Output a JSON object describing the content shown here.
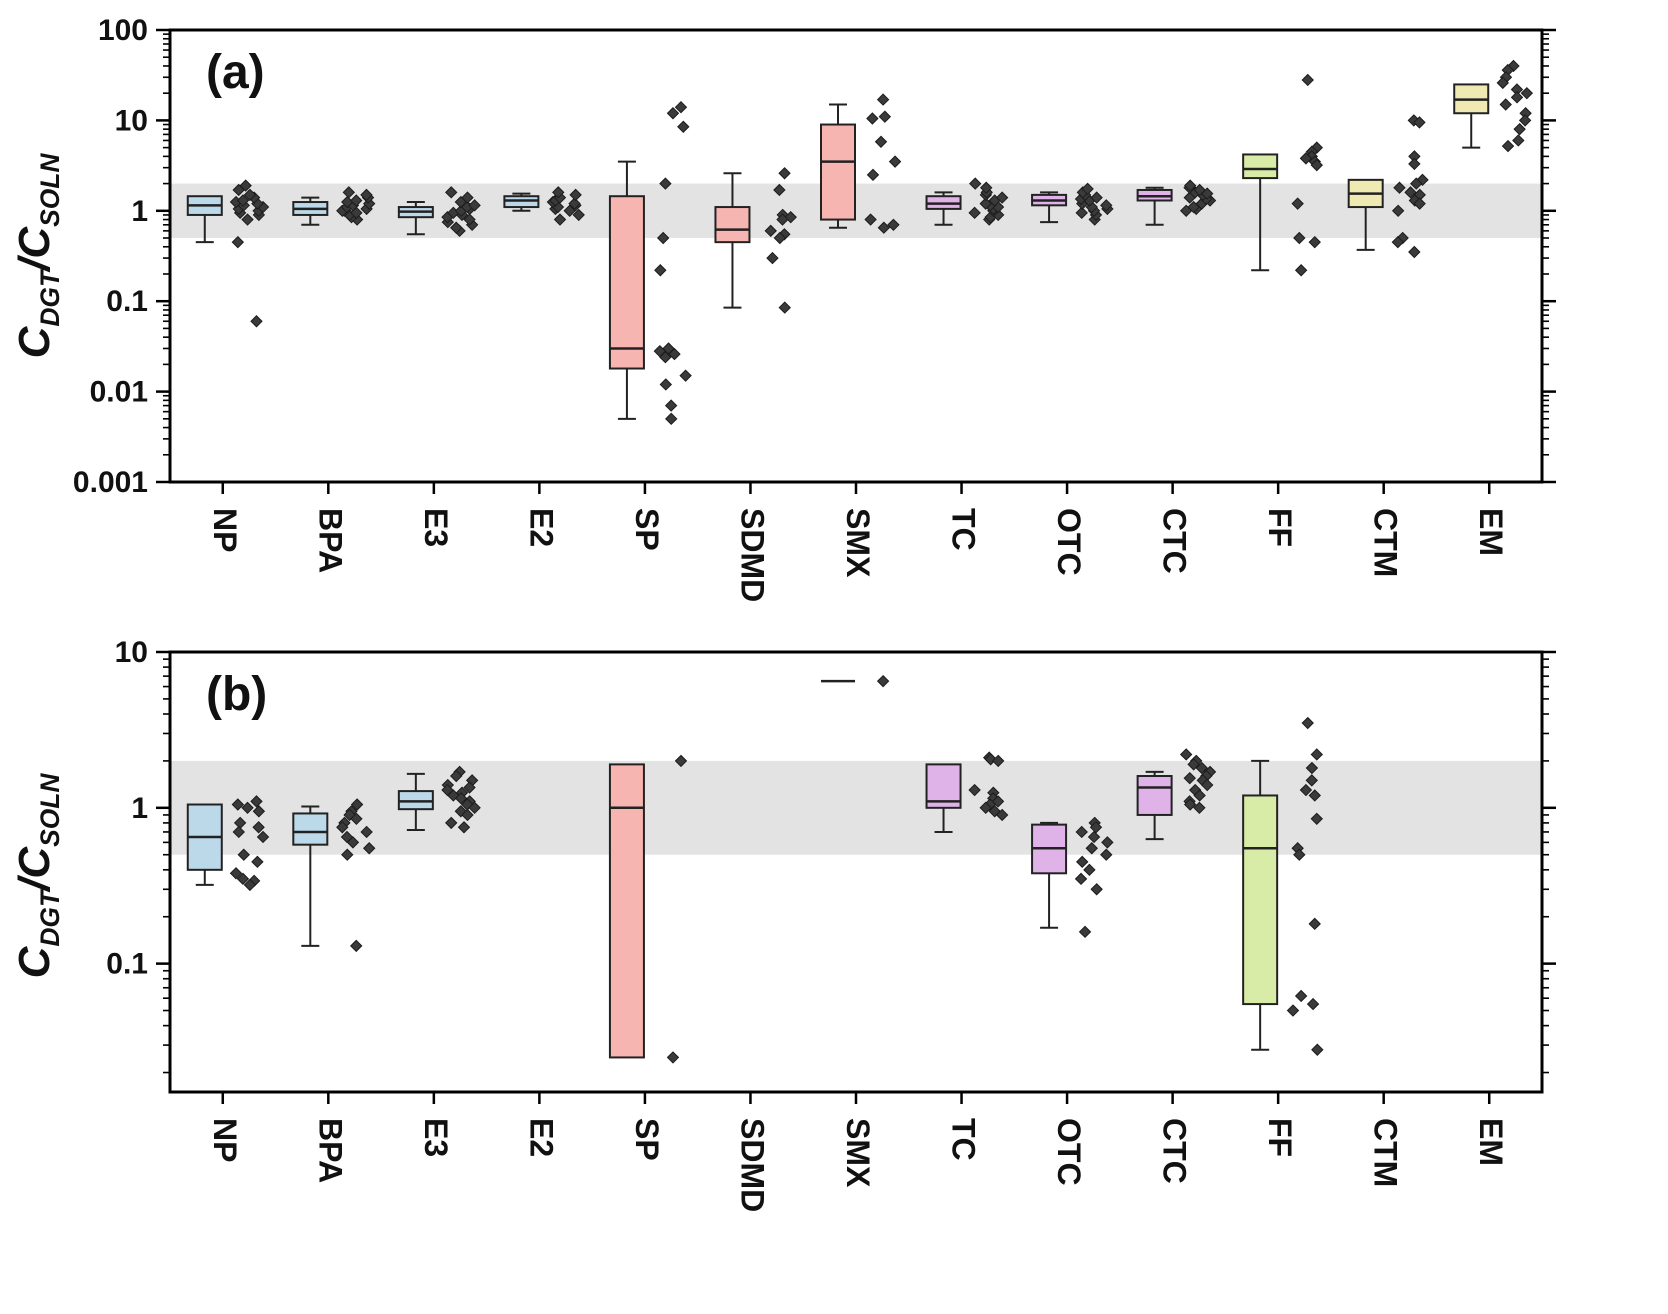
{
  "figure": {
    "y_axis_label": {
      "c1": "C",
      "s1": "DGT",
      "slash": "/",
      "c2": "C",
      "s2": "SOLN"
    }
  },
  "chart_data": [
    {
      "panel": "a",
      "label": "(a)",
      "type": "box-scatter",
      "ylim": [
        0.001,
        100
      ],
      "yticks": [
        100,
        10,
        1,
        0.1,
        0.01,
        0.001
      ],
      "ytick_labels": [
        "100",
        "10",
        "1",
        "0.1",
        "0.01",
        "0.001"
      ],
      "band": [
        0.5,
        2
      ],
      "band_color": "#e3e3e3",
      "categories": [
        "NP",
        "BPA",
        "E3",
        "E2",
        "SP",
        "SDMD",
        "SMX",
        "TC",
        "OTC",
        "CTC",
        "FF",
        "CTM",
        "EM"
      ],
      "colors": [
        "#bcd9ea",
        "#bcd9ea",
        "#bcd9ea",
        "#bcd9ea",
        "#f6b5b0",
        "#f6b5b0",
        "#f6b5b0",
        "#e0b3e8",
        "#e0b3e8",
        "#e0b3e8",
        "#d8eca8",
        "#eeeab2",
        "#eeeab2"
      ],
      "boxes": [
        {
          "whislo": 0.45,
          "q1": 0.9,
          "med": 1.15,
          "q3": 1.45,
          "whishi": 1.45
        },
        {
          "whislo": 0.7,
          "q1": 0.9,
          "med": 1.05,
          "q3": 1.25,
          "whishi": 1.4
        },
        {
          "whislo": 0.55,
          "q1": 0.85,
          "med": 0.98,
          "q3": 1.1,
          "whishi": 1.25
        },
        {
          "whislo": 1.0,
          "q1": 1.1,
          "med": 1.3,
          "q3": 1.45,
          "whishi": 1.55
        },
        {
          "whislo": 0.005,
          "q1": 0.018,
          "med": 0.03,
          "q3": 1.45,
          "whishi": 3.5
        },
        {
          "whislo": 0.085,
          "q1": 0.45,
          "med": 0.62,
          "q3": 1.1,
          "whishi": 2.6
        },
        {
          "whislo": 0.65,
          "q1": 0.8,
          "med": 3.5,
          "q3": 9.0,
          "whishi": 15.0
        },
        {
          "whislo": 0.7,
          "q1": 1.05,
          "med": 1.2,
          "q3": 1.45,
          "whishi": 1.6
        },
        {
          "whislo": 0.75,
          "q1": 1.15,
          "med": 1.3,
          "q3": 1.5,
          "whishi": 1.6
        },
        {
          "whislo": 0.7,
          "q1": 1.3,
          "med": 1.45,
          "q3": 1.7,
          "whishi": 1.8
        },
        {
          "whislo": 0.22,
          "q1": 2.3,
          "med": 2.9,
          "q3": 4.2,
          "whishi": 4.2
        },
        {
          "whislo": 0.37,
          "q1": 1.1,
          "med": 1.55,
          "q3": 2.2,
          "whishi": 2.2
        },
        {
          "whislo": 5.0,
          "q1": 12.0,
          "med": 17.0,
          "q3": 25.0,
          "whishi": 25.0
        }
      ],
      "points": [
        [
          0.06,
          0.45,
          0.8,
          0.9,
          0.95,
          1.0,
          1.05,
          1.1,
          1.15,
          1.2,
          1.25,
          1.3,
          1.4,
          1.5,
          1.7,
          1.9
        ],
        [
          0.8,
          0.85,
          0.9,
          0.95,
          1.0,
          1.0,
          1.05,
          1.1,
          1.15,
          1.2,
          1.25,
          1.3,
          1.4,
          1.5,
          1.6
        ],
        [
          0.6,
          0.65,
          0.7,
          0.75,
          0.8,
          0.85,
          0.9,
          0.95,
          1.0,
          1.05,
          1.1,
          1.15,
          1.25,
          1.4,
          1.6
        ],
        [
          0.8,
          0.9,
          1.0,
          1.05,
          1.1,
          1.15,
          1.2,
          1.25,
          1.3,
          1.4,
          1.5,
          1.6
        ],
        [
          14.0,
          12.0,
          8.5,
          2.0,
          0.5,
          0.22,
          0.03,
          0.028,
          0.026,
          0.024,
          0.015,
          0.012,
          0.007,
          0.005
        ],
        [
          2.6,
          1.7,
          0.9,
          0.85,
          0.8,
          0.6,
          0.55,
          0.5,
          0.3,
          0.085
        ],
        [
          17.0,
          11.0,
          10.5,
          5.8,
          3.5,
          2.5,
          0.8,
          0.7,
          0.65
        ],
        [
          0.8,
          0.85,
          0.9,
          0.95,
          1.0,
          1.05,
          1.1,
          1.15,
          1.2,
          1.3,
          1.4,
          1.5,
          1.6,
          1.8,
          2.0
        ],
        [
          0.8,
          0.9,
          0.95,
          1.0,
          1.05,
          1.1,
          1.15,
          1.2,
          1.3,
          1.35,
          1.4,
          1.5,
          1.6,
          1.75
        ],
        [
          1.0,
          1.05,
          1.1,
          1.2,
          1.3,
          1.35,
          1.4,
          1.5,
          1.55,
          1.6,
          1.7,
          1.8,
          1.9
        ],
        [
          28.0,
          5.0,
          4.5,
          4.0,
          3.8,
          3.5,
          3.2,
          1.2,
          0.5,
          0.45,
          0.22
        ],
        [
          10.0,
          9.5,
          4.0,
          3.3,
          2.2,
          2.0,
          1.8,
          1.6,
          1.5,
          1.3,
          1.2,
          1.0,
          0.5,
          0.45,
          0.35
        ],
        [
          40.0,
          36.0,
          30.0,
          26.0,
          22.0,
          20.0,
          18.0,
          15.0,
          12.0,
          10.0,
          8.0,
          6.0,
          5.2
        ]
      ]
    },
    {
      "panel": "b",
      "label": "(b)",
      "type": "box-scatter",
      "ylim": [
        0.015,
        10
      ],
      "yticks": [
        10,
        1,
        0.1
      ],
      "ytick_labels": [
        "10",
        "1",
        "0.1"
      ],
      "band": [
        0.5,
        2
      ],
      "band_color": "#e3e3e3",
      "categories": [
        "NP",
        "BPA",
        "E3",
        "E2",
        "SP",
        "SDMD",
        "SMX",
        "TC",
        "OTC",
        "CTC",
        "FF",
        "CTM",
        "EM"
      ],
      "colors": [
        "#bcd9ea",
        "#bcd9ea",
        "#bcd9ea",
        "#bcd9ea",
        "#f6b5b0",
        "#f6b5b0",
        "#f6b5b0",
        "#e0b3e8",
        "#e0b3e8",
        "#e0b3e8",
        "#d8eca8",
        "#eeeab2",
        "#eeeab2"
      ],
      "boxes": [
        {
          "whislo": 0.32,
          "q1": 0.4,
          "med": 0.65,
          "q3": 1.05,
          "whishi": 1.05
        },
        {
          "whislo": 0.13,
          "q1": 0.58,
          "med": 0.7,
          "q3": 0.92,
          "whishi": 1.02
        },
        {
          "whislo": 0.72,
          "q1": 0.98,
          "med": 1.1,
          "q3": 1.28,
          "whishi": 1.65
        },
        null,
        {
          "whislo": 0.025,
          "q1": 0.025,
          "med": 1.0,
          "q3": 1.9,
          "whishi": 1.9
        },
        null,
        {
          "whislo": 6.5,
          "q1": 6.5,
          "med": 6.5,
          "q3": 6.5,
          "whishi": 6.5
        },
        {
          "whislo": 0.7,
          "q1": 1.0,
          "med": 1.1,
          "q3": 1.9,
          "whishi": 1.9
        },
        {
          "whislo": 0.17,
          "q1": 0.38,
          "med": 0.55,
          "q3": 0.78,
          "whishi": 0.8
        },
        {
          "whislo": 0.63,
          "q1": 0.9,
          "med": 1.35,
          "q3": 1.6,
          "whishi": 1.7
        },
        {
          "whislo": 0.028,
          "q1": 0.055,
          "med": 0.55,
          "q3": 1.2,
          "whishi": 2.0
        },
        null,
        null
      ],
      "points": [
        [
          1.1,
          1.05,
          1.0,
          0.95,
          0.8,
          0.75,
          0.7,
          0.65,
          0.5,
          0.45,
          0.38,
          0.35,
          0.34,
          0.32
        ],
        [
          1.05,
          0.95,
          0.9,
          0.85,
          0.8,
          0.75,
          0.7,
          0.65,
          0.6,
          0.55,
          0.5,
          0.13
        ],
        [
          1.7,
          1.6,
          1.5,
          1.4,
          1.35,
          1.3,
          1.25,
          1.2,
          1.15,
          1.1,
          1.05,
          1.0,
          0.95,
          0.9,
          0.8,
          0.75
        ],
        [],
        [
          2.0,
          0.025
        ],
        [],
        [
          6.5
        ],
        [
          2.1,
          2.05,
          2.0,
          1.3,
          1.25,
          1.15,
          1.1,
          1.05,
          1.0,
          0.95,
          0.9
        ],
        [
          0.8,
          0.75,
          0.7,
          0.65,
          0.6,
          0.55,
          0.5,
          0.45,
          0.4,
          0.35,
          0.3,
          0.16
        ],
        [
          2.2,
          2.0,
          1.9,
          1.8,
          1.7,
          1.6,
          1.55,
          1.5,
          1.4,
          1.3,
          1.2,
          1.1,
          1.05,
          1.0
        ],
        [
          3.5,
          2.2,
          1.8,
          1.5,
          1.3,
          1.2,
          0.85,
          0.55,
          0.5,
          0.18,
          0.062,
          0.055,
          0.05,
          0.028
        ],
        [],
        []
      ]
    }
  ]
}
